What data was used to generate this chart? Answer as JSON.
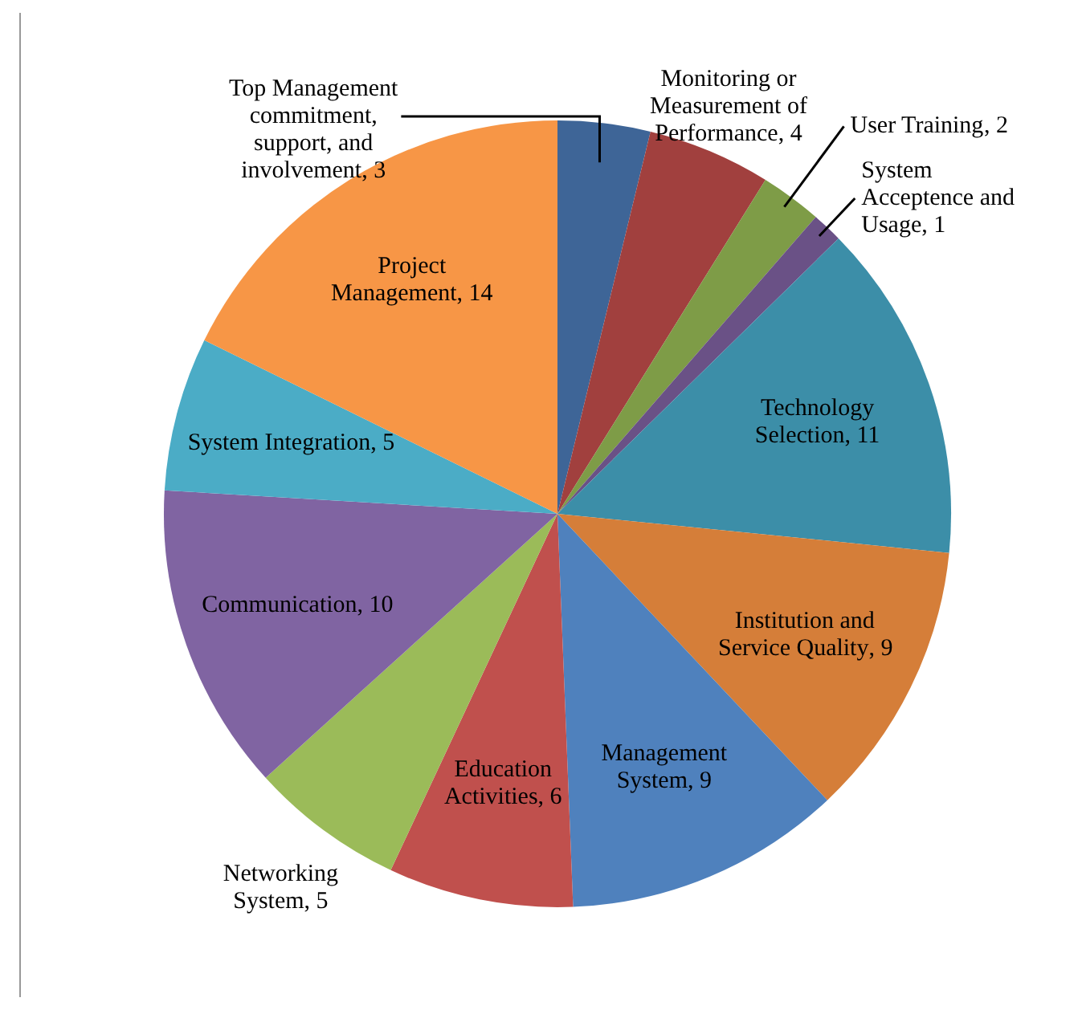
{
  "chart_data": {
    "type": "pie",
    "categories": [
      "Top Management commitment, support, and involvement",
      "Monitoring or Measurement of Performance",
      "User Training",
      "System Acceptence and Usage",
      "Technology Selection",
      "Institution and Service Quality",
      "Management System",
      "Education Activities",
      "Networking System",
      "Communication",
      "System Integration",
      "Project Management"
    ],
    "values": [
      3,
      4,
      2,
      1,
      11,
      9,
      9,
      6,
      5,
      10,
      5,
      14
    ],
    "colors": [
      "#3e6597",
      "#a1403e",
      "#7e9c47",
      "#6a5186",
      "#3c8ea8",
      "#d57e39",
      "#4f81bd",
      "#c0504d",
      "#9bbb59",
      "#8064a2",
      "#4bacc6",
      "#f79646"
    ],
    "value_labels": [
      ", 3",
      ", 4",
      ", 2",
      ", 1",
      ", 11",
      ", 9",
      ", 9",
      ", 6",
      ", 5",
      ", 10",
      ", 5",
      ", 14"
    ],
    "legend": false
  }
}
